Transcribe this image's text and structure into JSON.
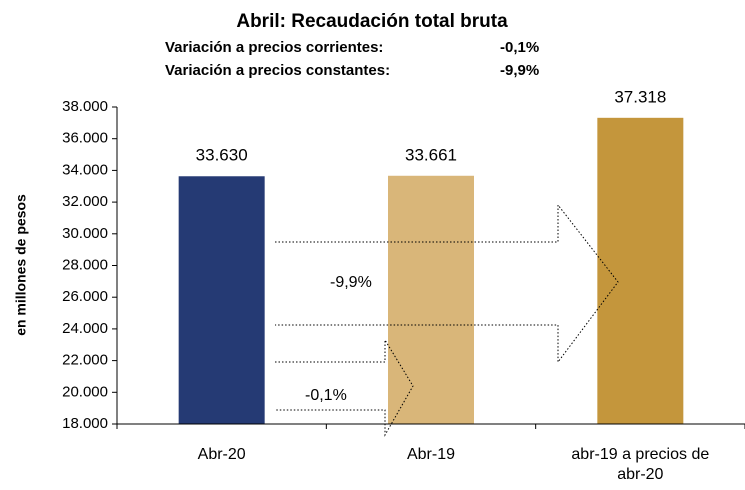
{
  "chart_data": {
    "type": "bar",
    "title": "Abril: Recaudación  total bruta",
    "subtitles": [
      {
        "label": "Variación a precios corrientes:",
        "value": "-0,1%"
      },
      {
        "label": "Variación a precios constantes:",
        "value": "-9,9%"
      }
    ],
    "y_label": "en millones de pesos",
    "categories": [
      "Abr-20",
      "Abr-19",
      "abr-19 a precios de abr-20"
    ],
    "values": [
      33630,
      33661,
      37318
    ],
    "value_labels": [
      "33.630",
      "33.661",
      "37.318"
    ],
    "colors": [
      "#253a74",
      "#d9b679",
      "#c4963c"
    ],
    "ylim": [
      18000,
      38000
    ],
    "yticks": [
      {
        "value": 18000,
        "label": "18.000"
      },
      {
        "value": 20000,
        "label": "20.000"
      },
      {
        "value": 22000,
        "label": "22.000"
      },
      {
        "value": 24000,
        "label": "24.000"
      },
      {
        "value": 26000,
        "label": "26.000"
      },
      {
        "value": 28000,
        "label": "28.000"
      },
      {
        "value": 30000,
        "label": "30.000"
      },
      {
        "value": 32000,
        "label": "32.000"
      },
      {
        "value": 34000,
        "label": "34.000"
      },
      {
        "value": 36000,
        "label": "36.000"
      },
      {
        "value": 38000,
        "label": "38.000"
      }
    ],
    "annotations": [
      "-9,9%",
      "-0,1%"
    ]
  }
}
